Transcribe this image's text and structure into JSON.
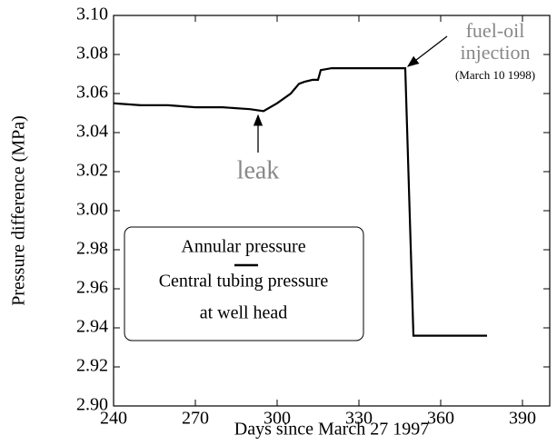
{
  "chart_data": {
    "type": "line",
    "x": [
      240,
      250,
      260,
      270,
      280,
      290,
      295,
      300,
      305,
      308,
      310,
      313,
      315,
      316,
      320,
      330,
      340,
      347,
      350,
      360,
      370,
      377
    ],
    "values": [
      3.055,
      3.054,
      3.054,
      3.053,
      3.053,
      3.052,
      3.051,
      3.055,
      3.06,
      3.065,
      3.066,
      3.067,
      3.067,
      3.072,
      3.073,
      3.073,
      3.073,
      3.073,
      2.936,
      2.936,
      2.936,
      2.936
    ],
    "color": "#000000",
    "xlim": [
      240,
      400
    ],
    "xticks": [
      240,
      270,
      300,
      330,
      360,
      390
    ],
    "ylim": [
      2.9,
      3.1
    ],
    "yticks": [
      {
        "value": 2.9,
        "label": "2.90"
      },
      2.92,
      2.94,
      2.96,
      2.98,
      {
        "value": 3.0,
        "label": "3.00"
      },
      3.02,
      3.04,
      3.06,
      3.08,
      {
        "value": 3.1,
        "label": "3.10"
      }
    ],
    "xlabel": "Days since March 27 1997",
    "ylabel": "Pressure difference (MPa)",
    "annotations": [
      "leak",
      "fuel-oil",
      "injection",
      "(March 10 1998)"
    ],
    "box_text": [
      "Annular pressure",
      "Central tubing pressure",
      "at well head"
    ]
  }
}
